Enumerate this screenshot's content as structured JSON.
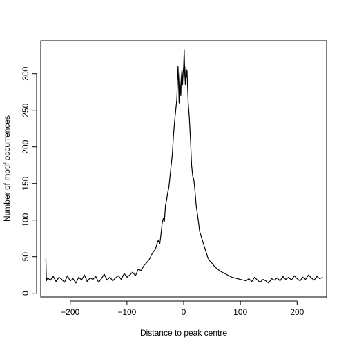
{
  "chart_data": {
    "type": "line",
    "title": "",
    "xlabel": "Distance to peak centre",
    "ylabel": "Number of motif occurrences",
    "xlim": [
      -252,
      252
    ],
    "ylim": [
      -5,
      345
    ],
    "x_ticks": [
      -200,
      -100,
      0,
      100,
      200
    ],
    "x_tick_labels": [
      "−200",
      "−100",
      "0",
      "100",
      "200"
    ],
    "y_ticks": [
      0,
      50,
      100,
      150,
      200,
      250,
      300
    ],
    "y_tick_labels": [
      "0",
      "50",
      "100",
      "150",
      "200",
      "250",
      "300"
    ],
    "grid": false,
    "line_color": "#000000",
    "series": [
      {
        "x": [
          -243,
          -242,
          -240,
          -235,
          -230,
          -225,
          -220,
          -215,
          -210,
          -205,
          -200,
          -195,
          -190,
          -185,
          -180,
          -175,
          -170,
          -165,
          -160,
          -155,
          -150,
          -145,
          -140,
          -135,
          -130,
          -125,
          -120,
          -115,
          -110,
          -105,
          -100,
          -95,
          -90,
          -85,
          -80,
          -75,
          -70,
          -65,
          -60,
          -55,
          -50,
          -45,
          -42,
          -40,
          -38,
          -36,
          -34,
          -32,
          -30,
          -28,
          -26,
          -24,
          -22,
          -20,
          -18,
          -16,
          -14,
          -12,
          -10,
          -9,
          -8,
          -7,
          -6,
          -5,
          -4,
          -3,
          -2,
          -1,
          0,
          1,
          2,
          3,
          4,
          5,
          6,
          7,
          8,
          9,
          10,
          12,
          14,
          16,
          18,
          20,
          22,
          24,
          26,
          28,
          30,
          32,
          34,
          36,
          38,
          40,
          42,
          45,
          50,
          55,
          60,
          65,
          70,
          75,
          80,
          85,
          90,
          95,
          100,
          105,
          110,
          115,
          120,
          125,
          130,
          135,
          140,
          145,
          150,
          155,
          160,
          165,
          170,
          175,
          180,
          185,
          190,
          195,
          200,
          205,
          210,
          215,
          220,
          225,
          230,
          235,
          240,
          245
        ],
        "y": [
          49,
          17,
          21,
          18,
          23,
          16,
          22,
          19,
          15,
          24,
          17,
          20,
          14,
          22,
          18,
          25,
          16,
          21,
          19,
          23,
          15,
          20,
          26,
          18,
          22,
          17,
          21,
          24,
          19,
          27,
          22,
          25,
          29,
          24,
          33,
          31,
          38,
          42,
          47,
          55,
          60,
          72,
          68,
          80,
          95,
          102,
          98,
          120,
          128,
          138,
          145,
          160,
          175,
          190,
          215,
          235,
          250,
          265,
          310,
          290,
          260,
          300,
          280,
          270,
          295,
          305,
          285,
          300,
          310,
          333,
          300,
          285,
          310,
          295,
          305,
          280,
          260,
          250,
          240,
          210,
          175,
          160,
          155,
          140,
          120,
          110,
          98,
          85,
          80,
          75,
          70,
          65,
          60,
          55,
          50,
          45,
          41,
          36,
          33,
          30,
          28,
          26,
          24,
          22,
          21,
          20,
          19,
          18,
          17,
          20,
          16,
          22,
          18,
          15,
          19,
          17,
          14,
          20,
          18,
          21,
          17,
          23,
          19,
          22,
          18,
          24,
          20,
          17,
          22,
          19,
          25,
          21,
          18,
          23,
          20,
          22
        ]
      }
    ]
  }
}
